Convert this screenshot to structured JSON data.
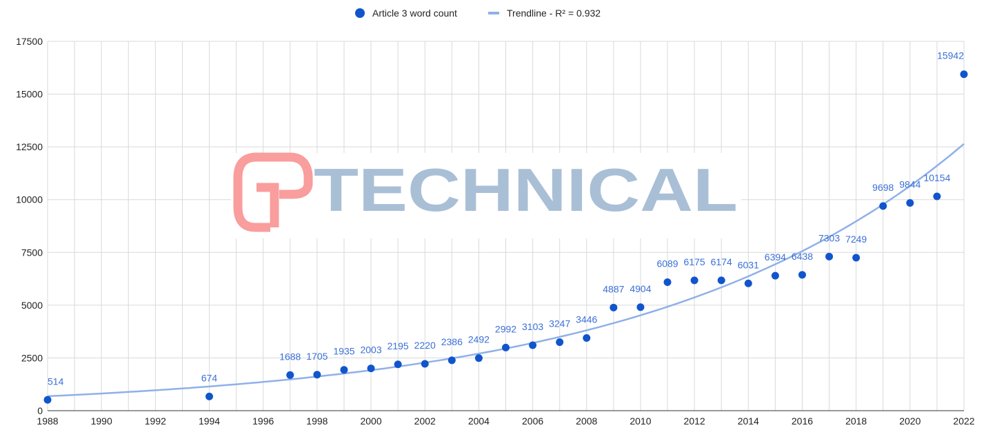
{
  "chart_data": {
    "type": "scatter",
    "title": "",
    "xlabel": "",
    "ylabel": "",
    "xlim": [
      1988,
      2022
    ],
    "ylim": [
      0,
      17500
    ],
    "x_ticks": [
      "1988",
      "1990",
      "1992",
      "1994",
      "1996",
      "1998",
      "2000",
      "2002",
      "2004",
      "2006",
      "2008",
      "2010",
      "2012",
      "2014",
      "2016",
      "2018",
      "2020",
      "2022"
    ],
    "y_ticks": [
      "0",
      "2500",
      "5000",
      "7500",
      "10000",
      "12500",
      "15000",
      "17500"
    ],
    "grid": true,
    "legend_position": "top",
    "series": [
      {
        "name": "Article 3 word count",
        "color": "#1155cc",
        "x": [
          1988,
          1994,
          1997,
          1998,
          1999,
          2000,
          2001,
          2002,
          2003,
          2004,
          2005,
          2006,
          2007,
          2008,
          2009,
          2010,
          2011,
          2012,
          2013,
          2014,
          2015,
          2016,
          2017,
          2018,
          2019,
          2020,
          2021,
          2022
        ],
        "y": [
          514,
          674,
          1688,
          1705,
          1935,
          2003,
          2195,
          2220,
          2386,
          2492,
          2992,
          3103,
          3247,
          3446,
          4887,
          4904,
          6089,
          6175,
          6174,
          6031,
          6394,
          6438,
          7303,
          7249,
          9698,
          9844,
          10154,
          15942
        ]
      }
    ],
    "trendline": {
      "name": "Trendline - R² = 0.932",
      "type": "exponential",
      "a": 686,
      "b": 0.0857,
      "x0": 1988,
      "color": "#8fb0e8"
    }
  },
  "watermark": {
    "text": "TECHNICAL",
    "logo": "GP"
  }
}
